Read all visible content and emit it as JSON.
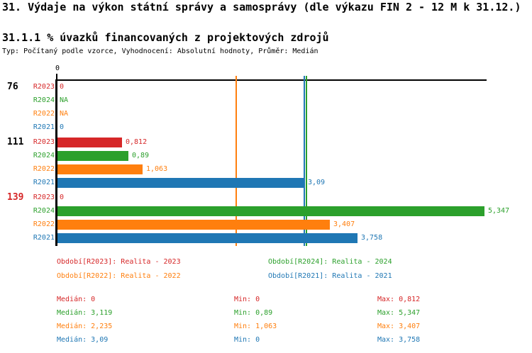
{
  "header": {
    "title": "31. Výdaje na výkon státní správy a samosprávy (dle výkazu FIN 2 - 12 M k 31.12.)",
    "subtitle": "31.1.1 % úvazků financovaných z projektových zdrojů",
    "meta": "Typ: Počítaný podle vzorce, Vyhodnocení: Absolutní hodnoty, Průměr: Medián"
  },
  "series_colors": {
    "R2023": "#d62728",
    "R2024": "#2ca02c",
    "R2022": "#ff7f0e",
    "R2021": "#1f77b4"
  },
  "chart_data": {
    "type": "bar",
    "orientation": "horizontal",
    "axis_tick_label": "0",
    "xlim": [
      0,
      5.4
    ],
    "grid": false,
    "series_order": [
      "R2023",
      "R2024",
      "R2022",
      "R2021"
    ],
    "groups": [
      {
        "label": "76",
        "label_color": "#000000",
        "bars": [
          {
            "series": "R2023",
            "value": 0,
            "display": "0"
          },
          {
            "series": "R2024",
            "value": null,
            "display": "NA"
          },
          {
            "series": "R2022",
            "value": null,
            "display": "NA"
          },
          {
            "series": "R2021",
            "value": 0,
            "display": "0"
          }
        ]
      },
      {
        "label": "111",
        "label_color": "#000000",
        "bars": [
          {
            "series": "R2023",
            "value": 0.812,
            "display": "0,812"
          },
          {
            "series": "R2024",
            "value": 0.89,
            "display": "0,89"
          },
          {
            "series": "R2022",
            "value": 1.063,
            "display": "1,063"
          },
          {
            "series": "R2021",
            "value": 3.09,
            "display": "3,09"
          }
        ]
      },
      {
        "label": "139",
        "label_color": "#d62728",
        "bars": [
          {
            "series": "R2023",
            "value": 0,
            "display": "0"
          },
          {
            "series": "R2024",
            "value": 5.347,
            "display": "5,347"
          },
          {
            "series": "R2022",
            "value": 3.407,
            "display": "3,407"
          },
          {
            "series": "R2021",
            "value": 3.758,
            "display": "3,758"
          }
        ]
      }
    ],
    "median_lines": [
      {
        "series": "R2022",
        "value": 2.235
      },
      {
        "series": "R2021",
        "value": 3.09
      },
      {
        "series": "R2024",
        "value": 3.119
      }
    ]
  },
  "legend": {
    "items": [
      {
        "series": "R2023",
        "label": "Období[R2023]: Realita - 2023"
      },
      {
        "series": "R2024",
        "label": "Období[R2024]: Realita - 2024"
      },
      {
        "series": "R2022",
        "label": "Období[R2022]: Realita - 2022"
      },
      {
        "series": "R2021",
        "label": "Období[R2021]: Realita - 2021"
      }
    ]
  },
  "stats": {
    "rows": [
      {
        "series": "R2023",
        "median": "Medián: 0",
        "min": "Min: 0",
        "max": "Max: 0,812"
      },
      {
        "series": "R2024",
        "median": "Medián: 3,119",
        "min": "Min: 0,89",
        "max": "Max: 5,347"
      },
      {
        "series": "R2022",
        "median": "Medián: 2,235",
        "min": "Min: 1,063",
        "max": "Max: 3,407"
      },
      {
        "series": "R2021",
        "median": "Medián: 3,09",
        "min": "Min: 0",
        "max": "Max: 3,758"
      }
    ]
  }
}
